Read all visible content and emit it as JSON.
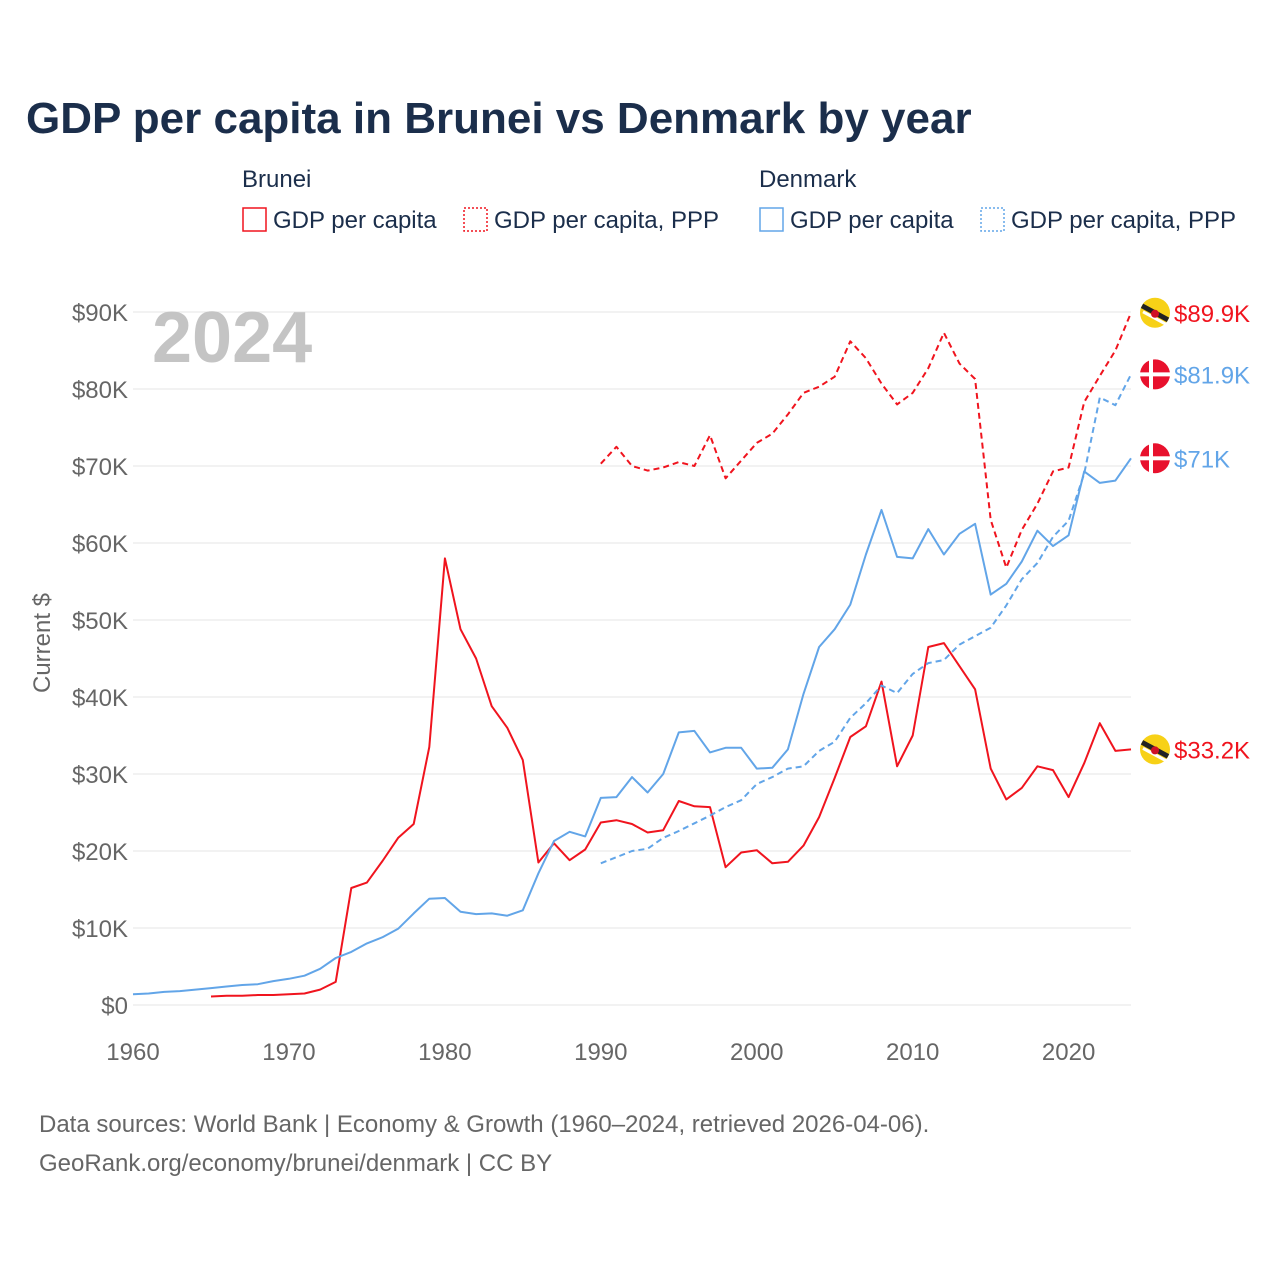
{
  "chart_data": {
    "type": "line",
    "title": "GDP per capita in Brunei vs Denmark by year",
    "ylabel": "Current $",
    "xlabel": "",
    "year_watermark": "2024",
    "xlim": [
      1960,
      2024
    ],
    "ylim": [
      0,
      90000
    ],
    "x_ticks": [
      1960,
      1970,
      1980,
      1990,
      2000,
      2010,
      2020
    ],
    "x_tick_labels": [
      "1960",
      "1970",
      "1980",
      "1990",
      "2000",
      "2010",
      "2020"
    ],
    "y_ticks": [
      0,
      10000,
      20000,
      30000,
      40000,
      50000,
      60000,
      70000,
      80000,
      90000
    ],
    "y_tick_labels": [
      "$0",
      "$10K",
      "$20K",
      "$30K",
      "$40K",
      "$50K",
      "$60K",
      "$70K",
      "$80K",
      "$90K"
    ],
    "grid": true,
    "legend": {
      "placement": "top",
      "groups": [
        {
          "name": "Brunei",
          "entries": [
            "GDP per capita",
            "GDP per capita, PPP"
          ]
        },
        {
          "name": "Denmark",
          "entries": [
            "GDP per capita",
            "GDP per capita, PPP"
          ]
        }
      ]
    },
    "colors": {
      "brunei": "#f0141e",
      "denmark": "#62a5e8"
    },
    "series": [
      {
        "name": "Brunei GDP per capita",
        "country": "brunei",
        "dashed": false,
        "start": 1965,
        "end_label": "$33.2K",
        "values": [
          1.1,
          1.2,
          1.2,
          1.3,
          1.3,
          1.4,
          1.5,
          2.0,
          3.0,
          15.2,
          15.9,
          18.7,
          21.7,
          23.5,
          33.5,
          58.0,
          48.8,
          45.0,
          38.8,
          36.0,
          31.8,
          18.5,
          21.0,
          18.8,
          20.2,
          23.7,
          24.0,
          23.5,
          22.4,
          22.7,
          26.5,
          25.8,
          25.7,
          17.9,
          19.8,
          20.1,
          18.4,
          18.6,
          20.7,
          24.4,
          29.5,
          34.8,
          36.2,
          42.0,
          31.0,
          35.0,
          46.5,
          47.0,
          44.0,
          41.0,
          30.7,
          26.7,
          28.2,
          31.0,
          30.5,
          27.0,
          31.4,
          36.6,
          33.0,
          33.2
        ]
      },
      {
        "name": "Brunei GDP per capita, PPP",
        "country": "brunei",
        "dashed": true,
        "start": 1990,
        "end_label": "$89.9K",
        "values": [
          70.3,
          72.5,
          70.0,
          69.4,
          69.8,
          70.5,
          70.0,
          74.0,
          68.4,
          70.7,
          73.0,
          74.2,
          76.7,
          79.5,
          80.3,
          81.6,
          86.2,
          84.0,
          80.7,
          78.0,
          79.5,
          82.7,
          87.3,
          83.3,
          81.3,
          63.0,
          56.8,
          61.7,
          65.1,
          69.3,
          69.8,
          78.3,
          81.7,
          85.0,
          89.9
        ]
      },
      {
        "name": "Denmark GDP per capita",
        "country": "denmark",
        "dashed": false,
        "start": 1960,
        "end_label": "$71K",
        "values": [
          1.4,
          1.5,
          1.7,
          1.8,
          2.0,
          2.2,
          2.4,
          2.6,
          2.7,
          3.1,
          3.4,
          3.8,
          4.7,
          6.1,
          6.9,
          8.0,
          8.8,
          9.9,
          11.9,
          13.8,
          13.9,
          12.1,
          11.8,
          11.9,
          11.6,
          12.3,
          17.1,
          21.3,
          22.5,
          21.9,
          26.9,
          27.0,
          29.6,
          27.6,
          30.0,
          35.4,
          35.6,
          32.8,
          33.4,
          33.4,
          30.7,
          30.8,
          33.2,
          40.4,
          46.5,
          48.8,
          52.0,
          58.5,
          64.3,
          58.2,
          58.0,
          61.8,
          58.5,
          61.2,
          62.5,
          53.3,
          54.7,
          57.6,
          61.6,
          59.6,
          61.0,
          69.3,
          67.8,
          68.1,
          71.0
        ]
      },
      {
        "name": "Denmark GDP per capita, PPP",
        "country": "denmark",
        "dashed": true,
        "start": 1990,
        "end_label": "$81.9K",
        "values": [
          18.4,
          19.2,
          20.0,
          20.3,
          21.7,
          22.6,
          23.6,
          24.6,
          25.7,
          26.6,
          28.7,
          29.6,
          30.7,
          31.0,
          33.0,
          34.2,
          37.3,
          39.2,
          41.5,
          40.5,
          43.0,
          44.4,
          44.8,
          46.8,
          47.9,
          49.0,
          51.9,
          55.3,
          57.4,
          60.8,
          62.9,
          69.0,
          78.9,
          77.9,
          81.9
        ]
      }
    ],
    "value_unit": "thousand USD",
    "source": "Data sources: World Bank | Economy & Growth (1960–2024, retrieved 2026-04-06).",
    "credit": "GeoRank.org/economy/brunei/denmark | CC BY"
  }
}
